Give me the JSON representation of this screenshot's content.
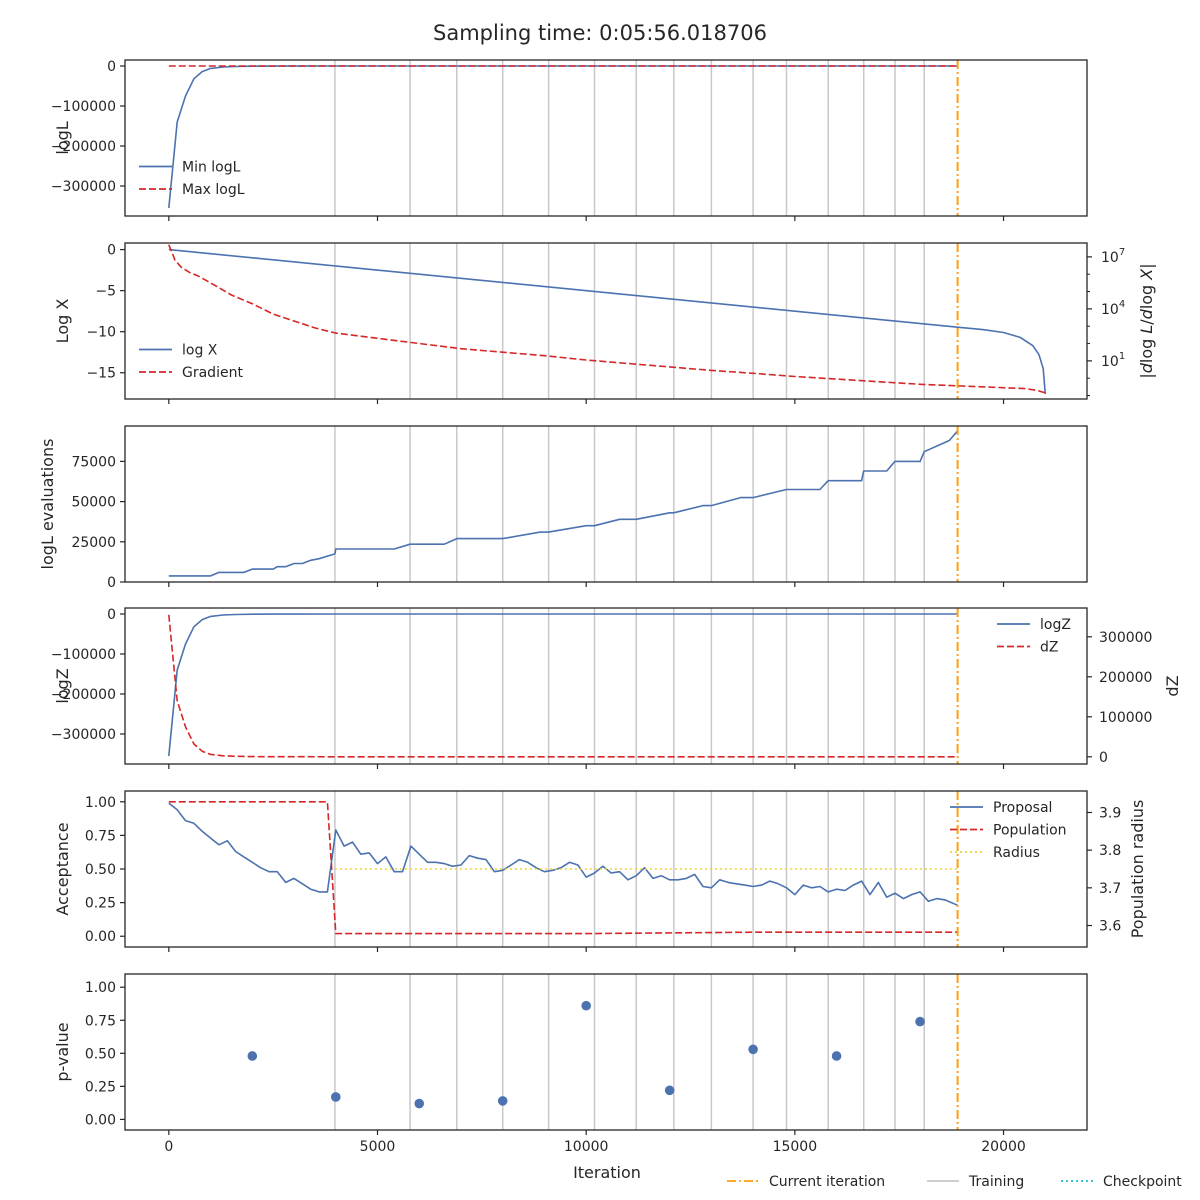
{
  "title": "Sampling time: 0:05:56.018706",
  "colors": {
    "blue": "#4c72b0",
    "red": "#d62728",
    "orange": "#ff9f0e",
    "yellow": "#e8d43a",
    "grey": "#c8c8c8",
    "cyan": "#17becf"
  },
  "xaxis": {
    "label": "Iteration",
    "ticks": [
      0,
      5000,
      10000,
      15000,
      20000
    ],
    "tick_labels": [
      "0",
      "5000",
      "10000",
      "15000",
      "20000"
    ],
    "lim": [
      -1050,
      22000
    ]
  },
  "current_iteration": 18900,
  "training_iterations": [
    3980,
    5780,
    6900,
    8000,
    9100,
    10200,
    11200,
    12100,
    13000,
    14000,
    14800,
    15800,
    16650,
    17400,
    18100
  ],
  "legend_bottom": [
    {
      "label": "Current iteration",
      "style": "dashdot",
      "color": "#ff9f0e"
    },
    {
      "label": "Training",
      "style": "solid",
      "color": "#c8c8c8"
    },
    {
      "label": "Checkpoint",
      "style": "dotted",
      "color": "#17becf"
    }
  ],
  "chart_data": [
    {
      "type": "line",
      "ylabel": "logL",
      "ylim": [
        -375000,
        15000
      ],
      "yticks": [
        0,
        -100000,
        -200000,
        -300000
      ],
      "ytick_labels": [
        "0",
        "−100000",
        "−200000",
        "−300000"
      ],
      "legend": {
        "placement": "lower-left"
      },
      "series": [
        {
          "name": "Min logL",
          "style": "solid",
          "color": "#4c72b0",
          "x": [
            0,
            200,
            400,
            600,
            800,
            1000,
            1300,
            1600,
            2000,
            2500,
            3000,
            4000,
            6000,
            10000,
            18900
          ],
          "y": [
            -355000,
            -140000,
            -75000,
            -32000,
            -14000,
            -6000,
            -2500,
            -1200,
            -600,
            -300,
            -150,
            -60,
            -20,
            -5,
            0
          ]
        },
        {
          "name": "Max logL",
          "style": "dashed",
          "color": "#d62728",
          "x": [
            0,
            18900
          ],
          "y": [
            0,
            0
          ]
        }
      ]
    },
    {
      "type": "line",
      "ylabel": "Log X",
      "ylim": [
        -18.2,
        0.8
      ],
      "yticks": [
        0,
        -5,
        -10,
        -15
      ],
      "ytick_labels": [
        "0",
        "−5",
        "−10",
        "−15"
      ],
      "y2label": "|d log L / d log X|",
      "y2scale": "log",
      "y2lim_exp": [
        -1.2,
        7.8
      ],
      "y2ticks_exp": [
        7,
        4,
        1
      ],
      "legend": {
        "placement": "lower-left"
      },
      "series": [
        {
          "name": "log X",
          "style": "solid",
          "color": "#4c72b0",
          "x": [
            0,
            18900,
            19500,
            20000,
            20400,
            20700,
            20850,
            20950,
            21000
          ],
          "y": [
            0,
            -9.45,
            -9.75,
            -10.1,
            -10.7,
            -11.7,
            -12.8,
            -14.5,
            -17.6
          ]
        },
        {
          "name": "Gradient",
          "style": "dashed",
          "color": "#d62728",
          "axis": "right",
          "x": [
            0,
            150,
            300,
            500,
            700,
            1000,
            1500,
            2000,
            2500,
            3000,
            3500,
            4000,
            5000,
            6000,
            7000,
            8000,
            9000,
            10000,
            11000,
            12000,
            13000,
            14000,
            15000,
            16000,
            17000,
            18000,
            19000,
            20000,
            20500,
            20800,
            21000
          ],
          "y_exp": [
            7.7,
            6.8,
            6.4,
            6.1,
            5.9,
            5.5,
            4.8,
            4.3,
            3.7,
            3.3,
            2.9,
            2.6,
            2.3,
            2.0,
            1.7,
            1.5,
            1.3,
            1.05,
            0.85,
            0.65,
            0.45,
            0.28,
            0.1,
            -0.05,
            -0.2,
            -0.35,
            -0.45,
            -0.55,
            -0.6,
            -0.7,
            -0.85
          ]
        }
      ]
    },
    {
      "type": "line",
      "ylabel": "logL evaluations",
      "ylim": [
        0,
        97000
      ],
      "yticks": [
        0,
        25000,
        50000,
        75000
      ],
      "ytick_labels": [
        "0",
        "25000",
        "50000",
        "75000"
      ],
      "series": [
        {
          "name": "",
          "style": "solid",
          "color": "#4c72b0",
          "x": [
            0,
            1000,
            1200,
            1800,
            2000,
            2500,
            2600,
            2800,
            3000,
            3200,
            3400,
            3600,
            3980,
            4000,
            5400,
            5780,
            6600,
            6900,
            7800,
            8000,
            8900,
            9100,
            10000,
            10200,
            10800,
            11200,
            12000,
            12100,
            12800,
            13000,
            13700,
            14000,
            14800,
            15600,
            15800,
            16600,
            16650,
            17200,
            17400,
            18000,
            18100,
            18700,
            18900
          ],
          "y": [
            3800,
            3800,
            6000,
            6000,
            8000,
            8000,
            9500,
            9500,
            11500,
            11500,
            13500,
            14500,
            17500,
            20500,
            20500,
            23500,
            23500,
            27000,
            27000,
            27000,
            31000,
            31000,
            35000,
            35000,
            39000,
            39000,
            43000,
            43000,
            47500,
            47500,
            52500,
            52500,
            57500,
            57500,
            63000,
            63000,
            69000,
            69000,
            75000,
            75000,
            81000,
            88000,
            94000
          ]
        }
      ]
    },
    {
      "type": "line",
      "ylabel": "logZ",
      "ylim": [
        -375000,
        15000
      ],
      "yticks": [
        0,
        -100000,
        -200000,
        -300000
      ],
      "ytick_labels": [
        "0",
        "−100000",
        "−200000",
        "−300000"
      ],
      "y2label": "dZ",
      "y2lim": [
        -18000,
        372000
      ],
      "y2ticks": [
        0,
        100000,
        200000,
        300000
      ],
      "y2tick_labels": [
        "0",
        "100000",
        "200000",
        "300000"
      ],
      "legend": {
        "placement": "top-right"
      },
      "series": [
        {
          "name": "logZ",
          "style": "solid",
          "color": "#4c72b0",
          "x": [
            0,
            200,
            400,
            600,
            800,
            1000,
            1300,
            1600,
            2000,
            2500,
            3000,
            4000,
            6000,
            10000,
            18900
          ],
          "y": [
            -355000,
            -140000,
            -75000,
            -32000,
            -14000,
            -6000,
            -2500,
            -1200,
            -600,
            -300,
            -150,
            -60,
            -20,
            -5,
            0
          ]
        },
        {
          "name": "dZ",
          "style": "dashed",
          "color": "#d62728",
          "axis": "right",
          "x": [
            0,
            200,
            400,
            600,
            800,
            1000,
            1300,
            1600,
            2000,
            2500,
            3000,
            4000,
            6000,
            10000,
            18900
          ],
          "y": [
            355000,
            140000,
            75000,
            32000,
            14000,
            6000,
            2500,
            1200,
            600,
            300,
            150,
            60,
            20,
            5,
            0
          ]
        }
      ]
    },
    {
      "type": "line",
      "ylabel": "Acceptance",
      "ylim": [
        -0.08,
        1.08
      ],
      "yticks": [
        1.0,
        0.75,
        0.5,
        0.25,
        0.0
      ],
      "ytick_labels": [
        "1.00",
        "0.75",
        "0.50",
        "0.25",
        "0.00"
      ],
      "y2label": "Population radius",
      "y2lim": [
        3.543,
        3.957
      ],
      "y2ticks": [
        3.9,
        3.8,
        3.7,
        3.6
      ],
      "y2tick_labels": [
        "3.9",
        "3.8",
        "3.7",
        "3.6"
      ],
      "legend": {
        "placement": "top-right"
      },
      "series": [
        {
          "name": "Proposal",
          "style": "solid",
          "color": "#4c72b0",
          "x": [
            0,
            200,
            400,
            600,
            800,
            1000,
            1200,
            1400,
            1600,
            1800,
            2000,
            2200,
            2400,
            2600,
            2800,
            3000,
            3200,
            3400,
            3600,
            3800,
            4000,
            4200,
            4400,
            4600,
            4800,
            5000,
            5200,
            5400,
            5600,
            5800,
            6000,
            6200,
            6400,
            6600,
            6800,
            7000,
            7200,
            7400,
            7600,
            7800,
            8000,
            8200,
            8400,
            8600,
            8800,
            9000,
            9200,
            9400,
            9600,
            9800,
            10000,
            10200,
            10400,
            10600,
            10800,
            11000,
            11200,
            11400,
            11600,
            11800,
            12000,
            12200,
            12400,
            12600,
            12800,
            13000,
            13200,
            13400,
            13600,
            13800,
            14000,
            14200,
            14400,
            14600,
            14800,
            15000,
            15200,
            15400,
            15600,
            15800,
            16000,
            16200,
            16400,
            16600,
            16800,
            17000,
            17200,
            17400,
            17600,
            17800,
            18000,
            18200,
            18400,
            18600,
            18900
          ],
          "y": [
            0.99,
            0.94,
            0.86,
            0.84,
            0.78,
            0.73,
            0.68,
            0.71,
            0.63,
            0.59,
            0.55,
            0.51,
            0.48,
            0.48,
            0.4,
            0.43,
            0.39,
            0.35,
            0.33,
            0.33,
            0.79,
            0.67,
            0.7,
            0.61,
            0.62,
            0.54,
            0.59,
            0.48,
            0.48,
            0.67,
            0.61,
            0.55,
            0.55,
            0.54,
            0.52,
            0.53,
            0.6,
            0.58,
            0.57,
            0.48,
            0.49,
            0.53,
            0.57,
            0.55,
            0.51,
            0.48,
            0.49,
            0.51,
            0.55,
            0.53,
            0.44,
            0.47,
            0.52,
            0.47,
            0.48,
            0.42,
            0.45,
            0.51,
            0.43,
            0.45,
            0.42,
            0.42,
            0.43,
            0.46,
            0.37,
            0.36,
            0.42,
            0.4,
            0.39,
            0.38,
            0.37,
            0.38,
            0.41,
            0.39,
            0.36,
            0.31,
            0.38,
            0.36,
            0.37,
            0.33,
            0.35,
            0.34,
            0.38,
            0.41,
            0.31,
            0.4,
            0.29,
            0.32,
            0.28,
            0.31,
            0.33,
            0.26,
            0.28,
            0.27,
            0.23
          ]
        },
        {
          "name": "Population",
          "style": "dashed",
          "color": "#d62728",
          "x": [
            0,
            3800,
            4000,
            10000,
            14000,
            18900
          ],
          "y": [
            1.0,
            1.0,
            0.02,
            0.02,
            0.03,
            0.03
          ]
        },
        {
          "name": "Radius",
          "style": "dotted",
          "color": "#e8d43a",
          "axis": "right",
          "x": [
            3980,
            18900
          ],
          "y": [
            3.75,
            3.75
          ]
        }
      ]
    },
    {
      "type": "scatter",
      "ylabel": "p-value",
      "ylim": [
        -0.08,
        1.1
      ],
      "yticks": [
        1.0,
        0.75,
        0.5,
        0.25,
        0.0
      ],
      "ytick_labels": [
        "1.00",
        "0.75",
        "0.50",
        "0.25",
        "0.00"
      ],
      "series": [
        {
          "name": "",
          "color": "#4c72b0",
          "x": [
            2000,
            4000,
            6000,
            8000,
            10000,
            12000,
            14000,
            16000,
            18000
          ],
          "y": [
            0.48,
            0.17,
            0.12,
            0.14,
            0.86,
            0.22,
            0.53,
            0.48,
            0.74
          ]
        }
      ]
    }
  ]
}
